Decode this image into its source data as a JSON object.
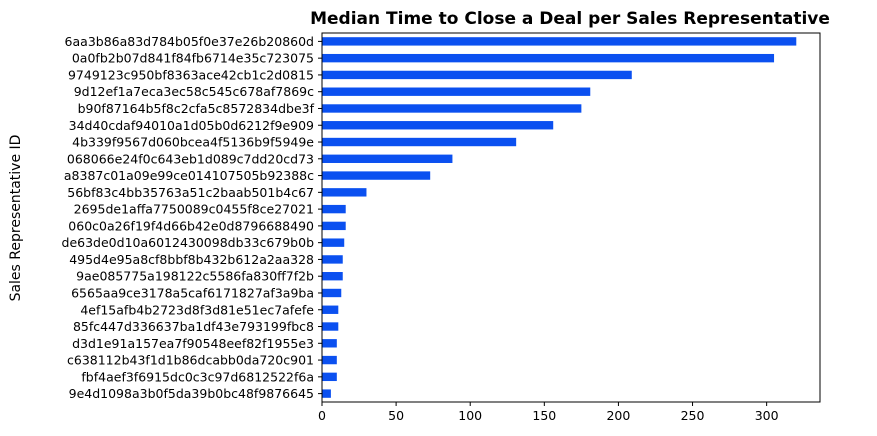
{
  "chart_data": {
    "type": "bar",
    "orientation": "horizontal",
    "title": "Median Time to Close a Deal per Sales Representative",
    "xlabel": "",
    "ylabel": "Sales Representative ID",
    "xlim": [
      0,
      336
    ],
    "xticks": [
      0,
      50,
      100,
      150,
      200,
      250,
      300
    ],
    "bar_color": "#0b50f0",
    "categories": [
      "6aa3b86a83d784b05f0e37e26b20860d",
      "0a0fb2b07d841f84fb6714e35c723075",
      "9749123c950bf8363ace42cb1c2d0815",
      "9d12ef1a7eca3ec58c545c678af7869c",
      "b90f87164b5f8c2cfa5c8572834dbe3f",
      "34d40cdaf94010a1d05b0d6212f9e909",
      "4b339f9567d060bcea4f5136b9f5949e",
      "068066e24f0c643eb1d089c7dd20cd73",
      "a8387c01a09e99ce014107505b92388c",
      "56bf83c4bb35763a51c2baab501b4c67",
      "2695de1affa7750089c0455f8ce27021",
      "060c0a26f19f4d66b42e0d8796688490",
      "de63de0d10a6012430098db33c679b0b",
      "495d4e95a8cf8bbf8b432b612a2aa328",
      "9ae085775a198122c5586fa830ff7f2b",
      "6565aa9ce3178a5caf6171827af3a9ba",
      "4ef15afb4b2723d8f3d81e51ec7afefe",
      "85fc447d336637ba1df43e793199fbc8",
      "d3d1e91a157ea7f90548eef82f1955e3",
      "c638112b43f1d1b86dcabb0da720c901",
      "fbf4aef3f6915dc0c3c97d6812522f6a",
      "9e4d1098a3b0f5da39b0bc48f9876645"
    ],
    "values": [
      320,
      305,
      209,
      181,
      175,
      156,
      131,
      88,
      73,
      30,
      16,
      16,
      15,
      14,
      14,
      13,
      11,
      11,
      10,
      10,
      10,
      6
    ]
  }
}
